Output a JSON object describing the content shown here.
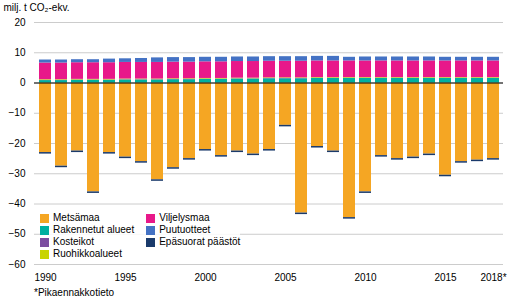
{
  "chart_data": {
    "type": "bar",
    "stacked": true,
    "ylabel": "milj. t CO₂-ekv.",
    "footnote": "*Pikaennakkotieto",
    "categories": [
      "1990",
      null,
      null,
      null,
      null,
      "1995",
      null,
      null,
      null,
      null,
      "2000",
      null,
      null,
      null,
      null,
      "2005",
      null,
      null,
      null,
      null,
      "2010",
      null,
      null,
      null,
      null,
      "2015",
      null,
      null,
      "2018*"
    ],
    "series": [
      {
        "name": "Metsämaa",
        "color": "#F5A623",
        "values": [
          -23.0,
          -27.5,
          -22.5,
          -36.0,
          -23.0,
          -24.5,
          -26.0,
          -32.0,
          -28.0,
          -25.0,
          -22.0,
          -24.0,
          -22.5,
          -23.5,
          -22.0,
          -14.0,
          -43.0,
          -21.0,
          -22.5,
          -44.5,
          -36.0,
          -24.0,
          -25.0,
          -24.5,
          -23.5,
          -30.5,
          -26.0,
          -25.5,
          -25.0
        ]
      },
      {
        "name": "Rakennetut alueet",
        "color": "#00B0A0",
        "values": [
          0.8,
          0.8,
          0.9,
          0.9,
          0.9,
          1.0,
          1.0,
          1.0,
          1.1,
          1.1,
          1.2,
          1.2,
          1.3,
          1.3,
          1.4,
          1.4,
          1.4,
          1.5,
          1.5,
          1.5,
          1.5,
          1.5,
          1.5,
          1.5,
          1.5,
          1.5,
          1.5,
          1.5,
          1.5
        ]
      },
      {
        "name": "Kosteikot",
        "color": "#7B4DA0",
        "values": [
          0.1,
          0.1,
          0.1,
          0.1,
          0.1,
          0.1,
          0.1,
          0.1,
          0.1,
          0.1,
          0.1,
          0.1,
          0.1,
          0.1,
          0.1,
          0.1,
          0.1,
          0.1,
          0.1,
          0.1,
          0.1,
          0.1,
          0.1,
          0.1,
          0.1,
          0.1,
          0.1,
          0.1,
          0.1
        ]
      },
      {
        "name": "Ruohikkoalueet",
        "color": "#C8D400",
        "values": [
          0.2,
          0.2,
          0.2,
          0.2,
          0.2,
          0.2,
          0.2,
          0.2,
          0.2,
          0.2,
          0.2,
          0.2,
          0.2,
          0.2,
          0.2,
          0.2,
          0.2,
          0.2,
          0.2,
          0.2,
          0.2,
          0.2,
          0.2,
          0.2,
          0.2,
          0.2,
          0.2,
          0.2,
          0.2
        ]
      },
      {
        "name": "Viljelysmaa",
        "color": "#E8188A",
        "values": [
          5.5,
          5.5,
          5.5,
          5.5,
          5.5,
          5.5,
          5.5,
          5.5,
          5.5,
          5.5,
          5.5,
          5.5,
          5.5,
          5.5,
          5.5,
          5.5,
          5.5,
          5.5,
          5.5,
          5.5,
          5.5,
          5.5,
          5.5,
          5.5,
          5.5,
          5.5,
          5.5,
          5.5,
          5.5
        ]
      },
      {
        "name": "Puutuotteet",
        "color": "#4472C4",
        "values": [
          1.0,
          1.0,
          1.0,
          1.0,
          1.2,
          1.2,
          1.3,
          1.5,
          1.5,
          1.5,
          1.5,
          1.5,
          1.5,
          1.5,
          1.5,
          1.5,
          1.5,
          1.5,
          1.5,
          1.2,
          1.3,
          1.3,
          1.3,
          1.3,
          1.3,
          1.2,
          1.2,
          1.2,
          1.2
        ]
      },
      {
        "name": "Epäsuorat päästöt",
        "color": "#1A3A6B",
        "values": [
          -0.5,
          -0.5,
          -0.5,
          -0.5,
          -0.5,
          -0.5,
          -0.5,
          -0.5,
          -0.5,
          -0.5,
          -0.5,
          -0.5,
          -0.5,
          -0.5,
          -0.5,
          -0.5,
          -0.5,
          -0.5,
          -0.5,
          -0.5,
          -0.5,
          -0.5,
          -0.5,
          -0.5,
          -0.5,
          -0.5,
          -0.5,
          -0.5,
          -0.5
        ]
      }
    ],
    "ylim": [
      -60,
      20
    ],
    "yticks": [
      -60,
      -50,
      -40,
      -30,
      -20,
      -10,
      0,
      10,
      20
    ],
    "grid": true,
    "legend": "lower left"
  }
}
